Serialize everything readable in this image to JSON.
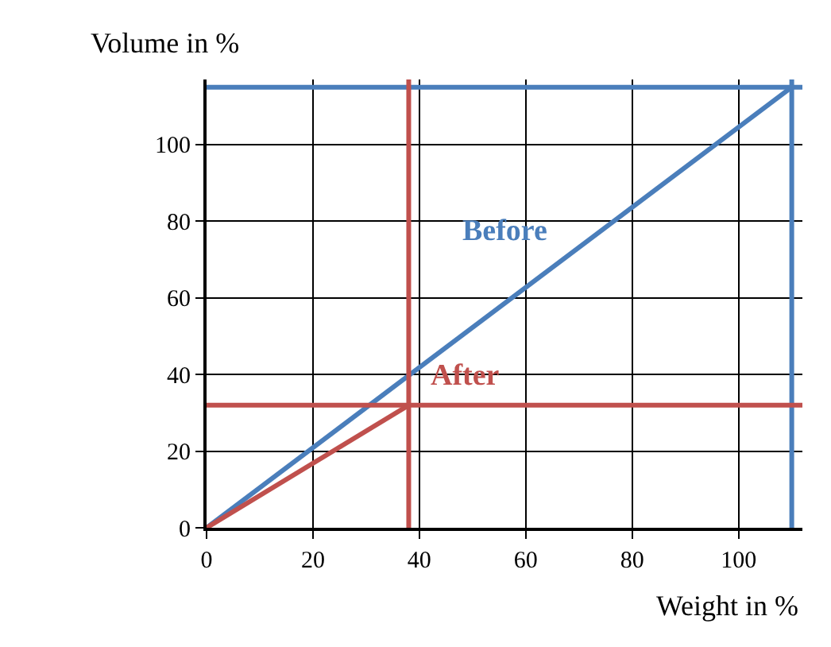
{
  "chart_data": {
    "type": "line",
    "xlabel": "Weight in %",
    "ylabel": "Volume in %",
    "xlim": [
      0,
      112
    ],
    "ylim": [
      0,
      117
    ],
    "xticks": [
      0,
      20,
      40,
      60,
      80,
      100
    ],
    "yticks": [
      0,
      20,
      40,
      60,
      80,
      100
    ],
    "grid": true,
    "legend": false,
    "marker": "none",
    "line_style": "solid",
    "series": [
      {
        "name": "Before",
        "color": "#4a7ebb",
        "x": [
          0,
          110
        ],
        "values": [
          0,
          115
        ]
      },
      {
        "name": "After",
        "color": "#c0504d",
        "x": [
          0,
          38
        ],
        "values": [
          0,
          32
        ]
      }
    ],
    "ref_lines": [
      {
        "axis": "y",
        "value": 115,
        "color": "#4a7ebb"
      },
      {
        "axis": "x",
        "value": 110,
        "color": "#4a7ebb"
      },
      {
        "axis": "x",
        "value": 38,
        "color": "#c0504d"
      },
      {
        "axis": "y",
        "value": 32,
        "color": "#c0504d"
      }
    ]
  }
}
